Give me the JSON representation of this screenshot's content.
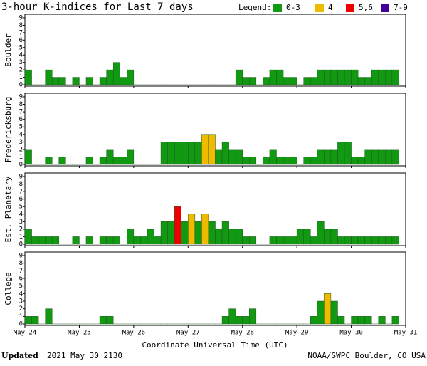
{
  "title": "3-hour K-indices for Last 7 days",
  "legend": {
    "title": "Legend:",
    "items": [
      {
        "label": "0-3",
        "color": "#119911"
      },
      {
        "label": "4",
        "color": "#eebb00"
      },
      {
        "label": "5,6",
        "color": "#ee0000"
      },
      {
        "label": "7-9",
        "color": "#440099"
      }
    ]
  },
  "x_axis": {
    "title": "Coordinate Universal Time (UTC)",
    "labels": [
      "May 24",
      "May 25",
      "May 26",
      "May 27",
      "May 28",
      "May 29",
      "May 30",
      "May 31"
    ]
  },
  "footer": {
    "updated_label": "Updated",
    "updated": "2021 May 30 2130",
    "credit": "NOAA/SWPC Boulder, CO USA"
  },
  "chart_data": [
    {
      "type": "bar",
      "ylabel": "Boulder",
      "ylim": [
        0,
        9
      ],
      "yticks": [
        0,
        1,
        2,
        3,
        4,
        5,
        6,
        7,
        8,
        9
      ],
      "values": [
        2,
        0,
        0,
        2,
        1,
        1,
        0,
        1,
        0,
        1,
        0,
        1,
        2,
        3,
        1,
        2,
        0,
        0,
        0,
        0,
        0,
        0,
        0,
        0,
        0,
        0,
        0,
        0,
        0,
        0,
        0,
        2,
        1,
        1,
        0,
        1,
        2,
        2,
        1,
        1,
        0,
        1,
        1,
        2,
        2,
        2,
        2,
        2,
        2,
        1,
        1,
        2,
        2,
        2,
        2,
        null
      ]
    },
    {
      "type": "bar",
      "ylabel": "Fredericksburg",
      "ylim": [
        0,
        9
      ],
      "yticks": [
        0,
        1,
        2,
        3,
        4,
        5,
        6,
        7,
        8,
        9
      ],
      "values": [
        2,
        0,
        0,
        1,
        0,
        1,
        0,
        0,
        0,
        1,
        0,
        1,
        2,
        1,
        1,
        2,
        0,
        0,
        0,
        0,
        3,
        3,
        3,
        3,
        3,
        3,
        4,
        4,
        2,
        3,
        2,
        2,
        1,
        1,
        0,
        1,
        2,
        1,
        1,
        1,
        0,
        1,
        1,
        2,
        2,
        2,
        3,
        3,
        1,
        1,
        2,
        2,
        2,
        2,
        2,
        null
      ]
    },
    {
      "type": "bar",
      "ylabel": "Est. Planetary",
      "ylim": [
        0,
        9
      ],
      "yticks": [
        0,
        1,
        2,
        3,
        4,
        5,
        6,
        7,
        8,
        9
      ],
      "values": [
        2,
        1,
        1,
        1,
        1,
        0,
        0,
        1,
        0,
        1,
        0,
        1,
        1,
        1,
        0,
        2,
        1,
        1,
        2,
        1,
        3,
        3,
        5,
        3,
        4,
        3,
        4,
        3,
        2,
        3,
        2,
        2,
        1,
        1,
        0,
        0,
        1,
        1,
        1,
        1,
        2,
        2,
        1,
        3,
        2,
        2,
        1,
        1,
        1,
        1,
        1,
        1,
        1,
        1,
        1,
        null
      ]
    },
    {
      "type": "bar",
      "ylabel": "College",
      "ylim": [
        0,
        9
      ],
      "yticks": [
        0,
        1,
        2,
        3,
        4,
        5,
        6,
        7,
        8,
        9
      ],
      "values": [
        1,
        1,
        0,
        2,
        0,
        0,
        0,
        0,
        0,
        0,
        0,
        1,
        1,
        0,
        0,
        0,
        0,
        0,
        0,
        0,
        0,
        0,
        0,
        0,
        0,
        0,
        0,
        0,
        0,
        1,
        2,
        1,
        1,
        2,
        0,
        0,
        0,
        0,
        0,
        0,
        0,
        0,
        1,
        3,
        4,
        3,
        1,
        0,
        1,
        1,
        1,
        0,
        1,
        0,
        1,
        null
      ]
    }
  ]
}
